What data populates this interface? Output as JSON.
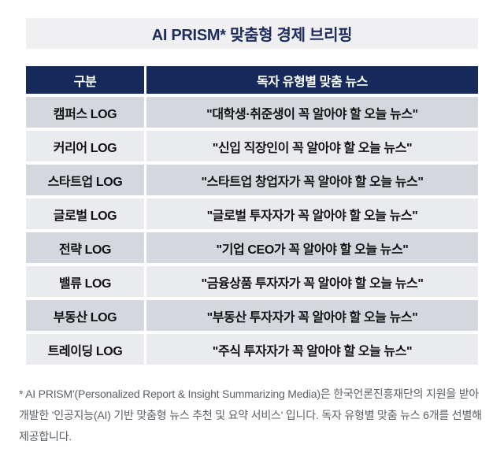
{
  "title": {
    "text": "AI PRISM* 맞춤형 경제 브리핑",
    "bg_color": "#f0f0f2",
    "text_color": "#1e2c5e"
  },
  "table": {
    "header": {
      "col1": "구분",
      "col2": "독자 유형별 맞춤 뉴스",
      "bg_color": "#15295a",
      "text_color": "#ffffff"
    },
    "row_colors": {
      "odd": "#d4d8de",
      "even": "#e9ebef"
    },
    "rows": [
      {
        "category": "캠퍼스 LOG",
        "news": "\"대학생·취준생이 꼭 알아야 할 오늘 뉴스\""
      },
      {
        "category": "커리어 LOG",
        "news": "\"신입 직장인이 꼭 알아야 할 오늘 뉴스\""
      },
      {
        "category": "스타트업 LOG",
        "news": "\"스타트업 창업자가 꼭 알아야 할 오늘 뉴스\""
      },
      {
        "category": "글로벌 LOG",
        "news": "\"글로벌 투자자가 꼭 알아야 할 오늘 뉴스\""
      },
      {
        "category": "전략 LOG",
        "news": "\"기업 CEO가 꼭 알아야 할 오늘 뉴스\""
      },
      {
        "category": "밸류 LOG",
        "news": "\"금융상품 투자자가 꼭 알아야 할 오늘 뉴스\""
      },
      {
        "category": "부동산 LOG",
        "news": "\"부동산 투자자가 꼭 알아야 할 오늘 뉴스\""
      },
      {
        "category": "트레이딩 LOG",
        "news": "\"주식 투자자가 꼭 알아야 할 오늘 뉴스\""
      }
    ]
  },
  "footnote": {
    "text": "* AI PRISM'(Personalized Report & Insight Summarizing Media)은 한국언론진흥재단의 지원을 받아 개발한 '인공지능(AI) 기반 맞춤형 뉴스 추천 및 요약 서비스' 입니다. 독자 유형별 맞춤 뉴스 6개를 선별해 제공합니다.",
    "text_color": "#5a6067"
  }
}
